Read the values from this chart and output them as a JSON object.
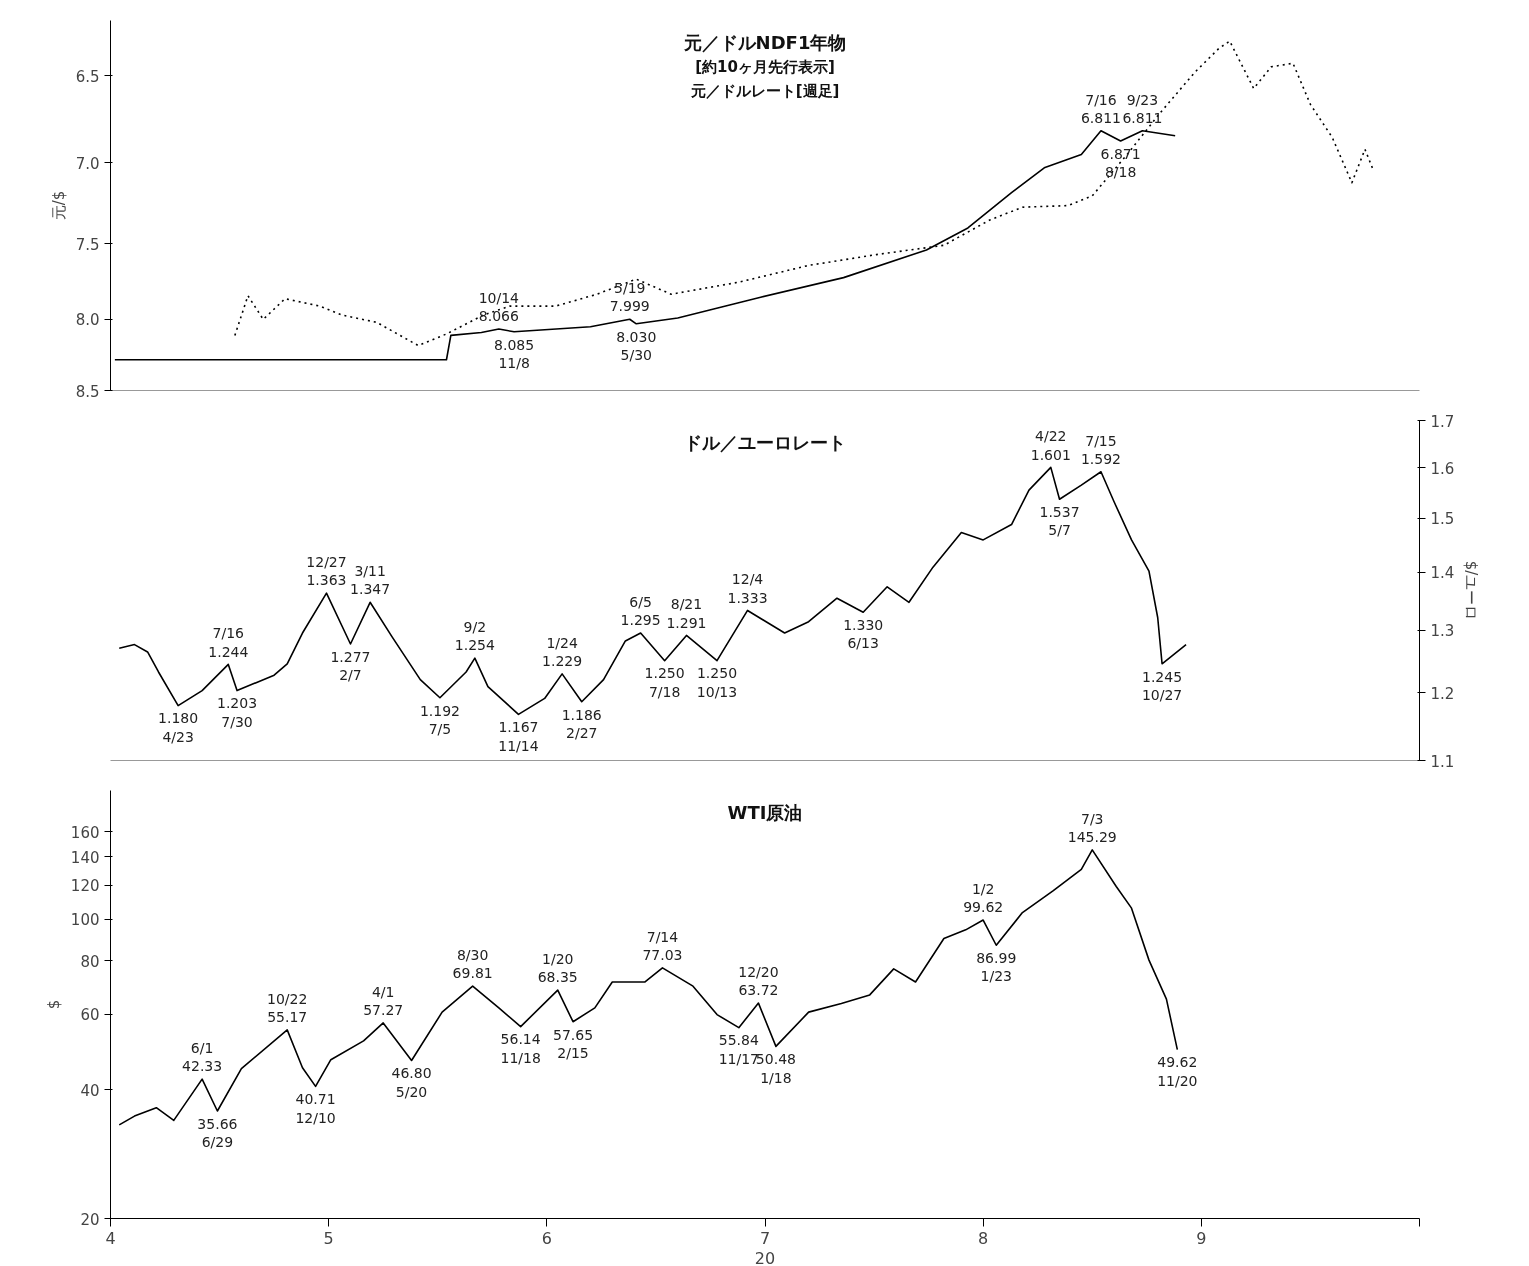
{
  "chart_data": [
    {
      "type": "line",
      "ylabel": "元/$",
      "log": "y",
      "tick_labels": "y",
      "xlim": [
        4,
        10
      ],
      "ylim": [
        8.5,
        6.2
      ],
      "yticks": [
        6.5,
        {
          "value": 7,
          "label": "7.0"
        },
        7.5,
        {
          "value": 8,
          "label": "8.0"
        },
        8.5
      ],
      "series": [
        {
          "color": "#000000",
          "line_style": "dotted",
          "x": [
            4.57,
            4.63,
            4.7,
            4.8,
            4.96,
            5.06,
            5.22,
            5.41,
            5.54,
            5.71,
            5.83,
            6.04,
            6.23,
            6.41,
            6.57,
            6.88,
            7.2,
            7.51,
            7.82,
            8.03,
            8.18,
            8.39,
            8.5,
            8.66,
            8.81,
            8.97,
            9.08,
            9.13,
            9.24,
            9.32,
            9.42,
            9.5,
            9.6,
            9.69,
            9.75,
            9.79
          ],
          "values": [
            8.11,
            7.84,
            8.0,
            7.86,
            7.91,
            7.97,
            8.02,
            8.18,
            8.1,
            7.97,
            7.91,
            7.91,
            7.83,
            7.73,
            7.83,
            7.75,
            7.64,
            7.57,
            7.51,
            7.35,
            7.27,
            7.26,
            7.2,
            6.95,
            6.71,
            6.48,
            6.35,
            6.31,
            6.57,
            6.45,
            6.43,
            6.66,
            6.85,
            7.12,
            6.92,
            7.05
          ]
        },
        {
          "color": "#000000",
          "line_style": "solid",
          "x": [
            4.02,
            5.54,
            5.56,
            5.7,
            5.78,
            5.85,
            6.2,
            6.38,
            6.41,
            6.6,
            6.98,
            7.36,
            7.74,
            7.93,
            8.13,
            8.28,
            8.45,
            8.54,
            8.63,
            8.73,
            8.88
          ],
          "values": [
            8.28,
            8.28,
            8.11,
            8.09,
            8.066,
            8.085,
            8.05,
            7.999,
            8.03,
            7.99,
            7.85,
            7.72,
            7.54,
            7.4,
            7.18,
            7.03,
            6.95,
            6.811,
            6.871,
            6.811,
            6.84
          ]
        }
      ],
      "annotations": [
        "元／ドルNDF1年物",
        "[約10ヶ月先行表示]",
        "元／ドルレート[週足]",
        {
          "text": "10/14\n8.066",
          "x": 5.78,
          "y": 8.066
        },
        {
          "text": "8.085\n11/8",
          "x": 5.85,
          "y": 8.085
        },
        {
          "text": "5/19\n7.999",
          "x": 6.38,
          "y": 7.999
        },
        {
          "text": "8.030\n5/30",
          "x": 6.41,
          "y": 8.03
        },
        {
          "text": "7/16\n6.811",
          "x": 8.54,
          "y": 6.811
        },
        {
          "text": "6.871\n8/18",
          "x": 8.63,
          "y": 6.871
        },
        {
          "text": "9/23\n6.811",
          "x": 8.73,
          "y": 6.811
        }
      ]
    },
    {
      "type": "line",
      "ylabel": "$/ユーロ",
      "log": "y",
      "tick_labels": "y",
      "xlim": [
        4,
        10
      ],
      "ylim": [
        1.1,
        1.7
      ],
      "yticks": [
        1.1,
        1.2,
        1.3,
        1.4,
        1.5,
        1.6,
        1.7
      ],
      "series": [
        {
          "color": "#000000",
          "x": [
            4.04,
            4.11,
            4.17,
            4.22,
            4.31,
            4.42,
            4.54,
            4.58,
            4.75,
            4.81,
            4.88,
            4.99,
            5.1,
            5.19,
            5.29,
            5.42,
            5.51,
            5.63,
            5.67,
            5.73,
            5.87,
            5.99,
            6.07,
            6.16,
            6.26,
            6.36,
            6.43,
            6.54,
            6.64,
            6.78,
            6.92,
            7.09,
            7.2,
            7.33,
            7.45,
            7.56,
            7.66,
            7.77,
            7.9,
            8.0,
            8.13,
            8.21,
            8.31,
            8.35,
            8.45,
            8.54,
            8.6,
            8.68,
            8.76,
            8.8,
            8.82,
            8.93
          ],
          "values": [
            1.27,
            1.276,
            1.264,
            1.232,
            1.18,
            1.203,
            1.244,
            1.203,
            1.227,
            1.245,
            1.295,
            1.363,
            1.277,
            1.347,
            1.289,
            1.22,
            1.192,
            1.232,
            1.254,
            1.209,
            1.167,
            1.191,
            1.229,
            1.186,
            1.22,
            1.282,
            1.295,
            1.25,
            1.291,
            1.25,
            1.333,
            1.295,
            1.314,
            1.354,
            1.33,
            1.374,
            1.347,
            1.409,
            1.473,
            1.459,
            1.488,
            1.555,
            1.601,
            1.537,
            1.565,
            1.592,
            1.532,
            1.459,
            1.402,
            1.321,
            1.245,
            1.276
          ]
        }
      ],
      "annotations": [
        "ドル／ユーロレート",
        {
          "text": "1.180\n4/23",
          "x": 4.31,
          "y": 1.18
        },
        {
          "text": "7/16\n1.244",
          "x": 4.54,
          "y": 1.244
        },
        {
          "text": "1.203\n7/30",
          "x": 4.58,
          "y": 1.203
        },
        {
          "text": "12/27\n1.363",
          "x": 4.99,
          "y": 1.363
        },
        {
          "text": "1.277\n2/7",
          "x": 5.1,
          "y": 1.277
        },
        {
          "text": "3/11\n1.347",
          "x": 5.19,
          "y": 1.347
        },
        {
          "text": "1.192\n7/5",
          "x": 5.51,
          "y": 1.192
        },
        {
          "text": "9/2\n1.254",
          "x": 5.67,
          "y": 1.254
        },
        {
          "text": "1.167\n11/14",
          "x": 5.87,
          "y": 1.167
        },
        {
          "text": "1/24\n1.229",
          "x": 6.07,
          "y": 1.229
        },
        {
          "text": "1.186\n2/27",
          "x": 6.16,
          "y": 1.186
        },
        {
          "text": "6/5\n1.295",
          "x": 6.43,
          "y": 1.295
        },
        {
          "text": "1.250\n7/18",
          "x": 6.54,
          "y": 1.25
        },
        {
          "text": "8/21\n1.291",
          "x": 6.64,
          "y": 1.291
        },
        {
          "text": "1.250\n10/13",
          "x": 6.78,
          "y": 1.25
        },
        {
          "text": "12/4\n1.333",
          "x": 6.92,
          "y": 1.333
        },
        {
          "text": "1.330\n6/13",
          "x": 7.45,
          "y": 1.33
        },
        {
          "text": "4/22\n1.601",
          "x": 8.31,
          "y": 1.601
        },
        {
          "text": "1.537\n5/7",
          "x": 8.35,
          "y": 1.537
        },
        {
          "text": "7/15\n1.592",
          "x": 8.54,
          "y": 1.592
        },
        {
          "text": "1.245\n10/27",
          "x": 8.82,
          "y": 1.245
        }
      ]
    },
    {
      "type": "line",
      "ylabel": "$",
      "xlabel": "20",
      "log": "y",
      "xlim": [
        4,
        10
      ],
      "ylim": [
        20,
        200
      ],
      "yticks": [
        20,
        40,
        60,
        80,
        100,
        120,
        140,
        160
      ],
      "xticks": [
        4,
        5,
        6,
        7,
        8,
        9,
        {
          "value": 10,
          "label": null
        }
      ],
      "series": [
        {
          "color": "#000000",
          "x": [
            4.04,
            4.11,
            4.21,
            4.29,
            4.42,
            4.49,
            4.6,
            4.81,
            4.88,
            4.94,
            5.01,
            5.16,
            5.25,
            5.38,
            5.52,
            5.66,
            5.78,
            5.88,
            6.05,
            6.12,
            6.22,
            6.3,
            6.45,
            6.53,
            6.67,
            6.78,
            6.88,
            6.97,
            7.05,
            7.2,
            7.35,
            7.48,
            7.59,
            7.69,
            7.82,
            7.92,
            8.0,
            8.06,
            8.18,
            8.32,
            8.45,
            8.5,
            8.61,
            8.68,
            8.76,
            8.84,
            8.89
          ],
          "values": [
            33.1,
            34.7,
            36.3,
            33.9,
            42.33,
            35.66,
            44.8,
            55.17,
            45.0,
            40.71,
            47.0,
            52.0,
            57.27,
            46.8,
            60.7,
            69.81,
            62.1,
            56.14,
            68.35,
            57.65,
            62.1,
            71.4,
            71.4,
            77.03,
            69.8,
            59.9,
            55.84,
            63.72,
            50.48,
            60.7,
            63.6,
            66.6,
            76.6,
            71.4,
            90.2,
            94.5,
            99.62,
            86.99,
            103.7,
            116.5,
            130.9,
            145.29,
            119.3,
            106.2,
            80.3,
            65.1,
            49.62
          ]
        }
      ],
      "annotations": [
        "WTI原油",
        {
          "text": "6/1\n42.33",
          "x": 4.42,
          "y": 42.33
        },
        {
          "text": "35.66\n6/29",
          "x": 4.49,
          "y": 35.66
        },
        {
          "text": "10/22\n55.17",
          "x": 4.81,
          "y": 55.17
        },
        {
          "text": "40.71\n12/10",
          "x": 4.94,
          "y": 40.71
        },
        {
          "text": "4/1\n57.27",
          "x": 5.25,
          "y": 57.27
        },
        {
          "text": "46.80\n5/20",
          "x": 5.38,
          "y": 46.8
        },
        {
          "text": "8/30\n69.81",
          "x": 5.66,
          "y": 69.81
        },
        {
          "text": "56.14\n11/18",
          "x": 5.88,
          "y": 56.14
        },
        {
          "text": "1/20\n68.35",
          "x": 6.05,
          "y": 68.35
        },
        {
          "text": "57.65\n2/15",
          "x": 6.12,
          "y": 57.65
        },
        {
          "text": "7/14\n77.03",
          "x": 6.53,
          "y": 77.03
        },
        {
          "text": "55.84\n11/17",
          "x": 6.88,
          "y": 55.84
        },
        {
          "text": "12/20\n63.72",
          "x": 6.97,
          "y": 63.72
        },
        {
          "text": "50.48\n1/18",
          "x": 7.05,
          "y": 50.48
        },
        {
          "text": "1/2\n99.62",
          "x": 8.0,
          "y": 99.62
        },
        {
          "text": "86.99\n1/23",
          "x": 8.06,
          "y": 86.99
        },
        {
          "text": "7/3\n145.29",
          "x": 8.5,
          "y": 145.29
        },
        {
          "text": "49.62\n11/20",
          "x": 8.89,
          "y": 49.62
        }
      ]
    }
  ]
}
